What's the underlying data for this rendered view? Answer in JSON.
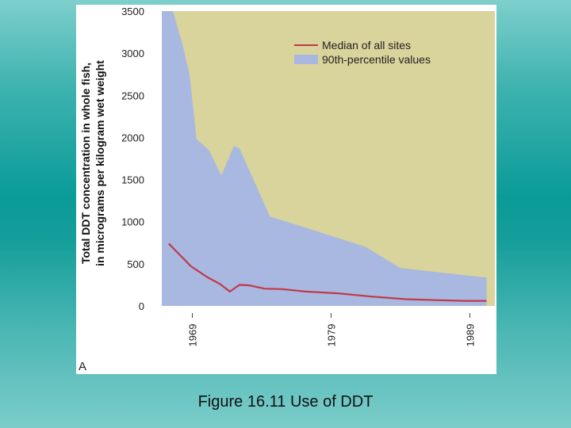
{
  "caption": "Figure 16.11 Use of DDT",
  "colors": {
    "background_top": "#7ecfcc",
    "background_mid": "#0a9b98",
    "panel": "#ffffff",
    "plot_bg": "#d9d39c",
    "area": "#a9b8e0",
    "median_line": "#c0394a"
  },
  "chart_data": {
    "type": "area",
    "panel_label": "A",
    "ylabel_line1": "Total DDT concentration in whole fish,",
    "ylabel_line2": "in micrograms per kilogram wet weight",
    "ylim": [
      0,
      3500
    ],
    "yticks": [
      0,
      500,
      1000,
      1500,
      2000,
      2500,
      3000,
      3500
    ],
    "xlim": [
      1966.8,
      1990.8
    ],
    "xtick_labels": [
      {
        "year": 1969,
        "label": "1969"
      },
      {
        "year": 1979,
        "label": "1979"
      },
      {
        "year": 1989,
        "label": "1989"
      }
    ],
    "legend": [
      "Median of all sites",
      "90th-percentile values"
    ],
    "series": [
      {
        "name": "90th-percentile values",
        "kind": "area",
        "x": [
          1966.8,
          1967.6,
          1968.3,
          1968.8,
          1969.3,
          1970.2,
          1971.1,
          1972.0,
          1972.4,
          1974.6,
          1977.7,
          1981.5,
          1984.0,
          1990.0,
          1990.2
        ],
        "y": [
          3500,
          3500,
          3100,
          2750,
          1980,
          1850,
          1550,
          1900,
          1870,
          1060,
          900,
          700,
          450,
          340,
          340
        ]
      },
      {
        "name": "Median of all sites",
        "kind": "line",
        "x": [
          1967.3,
          1968.9,
          1970.1,
          1971.0,
          1971.7,
          1972.4,
          1973.1,
          1974.2,
          1975.4,
          1977.2,
          1979.5,
          1982.0,
          1984.4,
          1986.5,
          1988.7,
          1990.2
        ],
        "y": [
          740,
          470,
          340,
          260,
          170,
          250,
          245,
          205,
          200,
          170,
          150,
          110,
          80,
          70,
          60,
          60
        ]
      }
    ]
  }
}
